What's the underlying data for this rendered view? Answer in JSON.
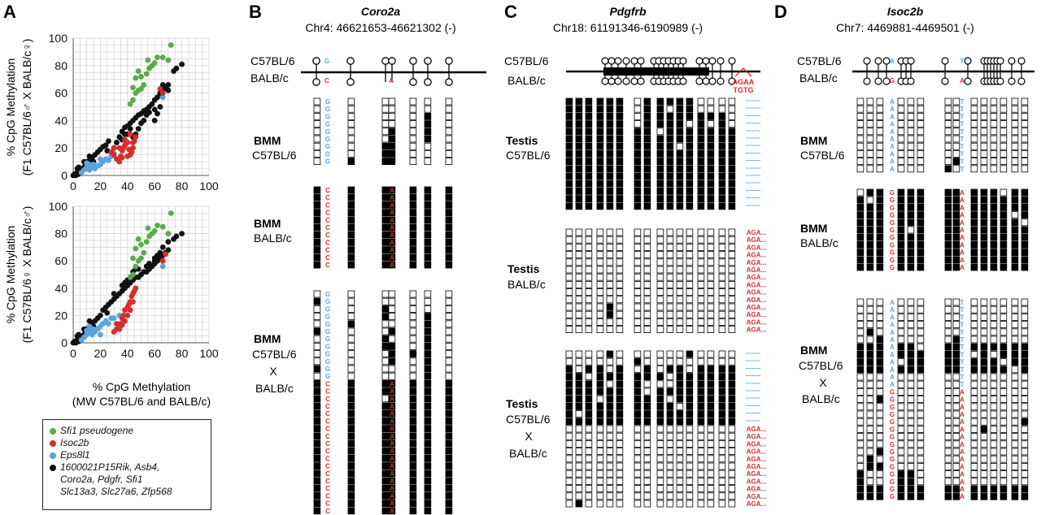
{
  "panels": {
    "A": {
      "label": "A",
      "y_label_top": [
        "% CpG Methylation",
        "(F1 C57BL/6♂ X BALB/c♀)"
      ],
      "y_label_bottom": [
        "% CpG Methylation",
        "(F1 C57BL/6♀ X BALB/c♂)"
      ],
      "x_label": [
        "% CpG Methylation",
        "(MW C57BL/6 and BALB/c)"
      ]
    },
    "B": {
      "label": "B",
      "gene": "Coro2a",
      "coords": "Chr4: 46621653-46621302 (-)"
    },
    "C": {
      "label": "C",
      "gene": "Pdgfrb",
      "coords": "Chr18: 61191346-6190989 (-)"
    },
    "D": {
      "label": "D",
      "gene": "Isoc2b",
      "coords": "Chr7: 4469881-4469501 (-)"
    }
  },
  "strains": {
    "b6": "C57BL/6",
    "balb": "BALB/c"
  },
  "cross": "X",
  "tissues": {
    "bmm": "BMM",
    "testis": "Testis"
  },
  "snp_labels": {
    "B": {
      "b6": [
        "G",
        "C"
      ],
      "balb": [
        "C",
        "A"
      ]
    },
    "C": {
      "indel_b6": "-------",
      "indel_balb": "AGA...",
      "insert_1": "AGAA",
      "insert_2": "TGTG"
    },
    "D": {
      "b6": [
        "A",
        "T"
      ],
      "balb": [
        "G",
        "A"
      ]
    }
  },
  "legend": [
    {
      "label": "Sfi1 pseudogene",
      "color": "#5aab4b"
    },
    {
      "label": "Isoc2b",
      "color": "#d62d2d"
    },
    {
      "label": "Eps8l1",
      "color": "#5ba3dc"
    },
    {
      "label": "1600021P15Rik, Asb4,\nCoro2a, Pdgfr, Sfi1\nSlc13a3, Slc27a6, Zfp568",
      "color": "#111111"
    }
  ],
  "colors": {
    "sfi1": "#5aab4b",
    "isoc2b": "#d62d2d",
    "eps8l1": "#5ba3dc",
    "other": "#111111",
    "b6_snp": "#5ba3dc",
    "balb_snp": "#d62d2d"
  },
  "chart_data": [
    {
      "type": "scatter",
      "title": "",
      "xlabel": "% CpG Methylation (MW C57BL/6 and BALB/c)",
      "ylabel": "% CpG Methylation (F1 C57BL/6♂ X BALB/c♀)",
      "xlim": [
        0,
        100
      ],
      "ylim": [
        0,
        100
      ],
      "xticks": [
        0,
        20,
        40,
        60,
        80,
        100
      ],
      "yticks": [
        0,
        20,
        40,
        60,
        80,
        100
      ],
      "grid": true,
      "series": [
        {
          "name": "Sfi1 pseudogene",
          "points": [
            [
              44,
              55
            ],
            [
              46,
              60
            ],
            [
              48,
              62
            ],
            [
              50,
              63
            ],
            [
              52,
              66
            ],
            [
              46,
              71
            ],
            [
              50,
              72
            ],
            [
              54,
              74
            ],
            [
              48,
              76
            ],
            [
              56,
              78
            ],
            [
              55,
              84
            ],
            [
              62,
              86
            ],
            [
              66,
              86
            ],
            [
              70,
              84
            ],
            [
              60,
              82
            ],
            [
              44,
              64
            ],
            [
              42,
              52
            ],
            [
              58,
              80
            ],
            [
              72,
              95
            ]
          ]
        },
        {
          "name": "Isoc2b",
          "points": [
            [
              28,
              17
            ],
            [
              30,
              15
            ],
            [
              32,
              12
            ],
            [
              34,
              10
            ],
            [
              35,
              14
            ],
            [
              36,
              18
            ],
            [
              37,
              20
            ],
            [
              38,
              22
            ],
            [
              40,
              24
            ],
            [
              41,
              19
            ],
            [
              42,
              15
            ],
            [
              43,
              17
            ],
            [
              44,
              20
            ],
            [
              45,
              25
            ],
            [
              46,
              28
            ],
            [
              34,
              20
            ],
            [
              38,
              26
            ],
            [
              40,
              14
            ],
            [
              36,
              13
            ],
            [
              44,
              24
            ],
            [
              30,
              20
            ],
            [
              66,
              60
            ],
            [
              64,
              63
            ],
            [
              42,
              30
            ]
          ]
        },
        {
          "name": "Eps8l1",
          "points": [
            [
              6,
              2
            ],
            [
              8,
              4
            ],
            [
              10,
              6
            ],
            [
              12,
              4
            ],
            [
              14,
              6
            ],
            [
              15,
              8
            ],
            [
              16,
              5
            ],
            [
              18,
              7
            ],
            [
              20,
              8
            ],
            [
              22,
              10
            ],
            [
              24,
              12
            ],
            [
              26,
              11
            ],
            [
              28,
              14
            ],
            [
              10,
              9
            ],
            [
              20,
              12
            ],
            [
              66,
              57
            ],
            [
              30,
              16
            ],
            [
              12,
              8
            ]
          ]
        },
        {
          "name": "1600021P15Rik, Asb4, Coro2a, Pdgfr, Sfi1 Slc13a3, Slc27a6, Zfp568",
          "points": [
            [
              0,
              0
            ],
            [
              1,
              1
            ],
            [
              2,
              0
            ],
            [
              3,
              2
            ],
            [
              4,
              1
            ],
            [
              5,
              3
            ],
            [
              6,
              4
            ],
            [
              7,
              5
            ],
            [
              8,
              6
            ],
            [
              9,
              8
            ],
            [
              10,
              10
            ],
            [
              12,
              11
            ],
            [
              14,
              13
            ],
            [
              16,
              15
            ],
            [
              18,
              17
            ],
            [
              20,
              19
            ],
            [
              22,
              21
            ],
            [
              24,
              22
            ],
            [
              26,
              25
            ],
            [
              4,
              6
            ],
            [
              8,
              10
            ],
            [
              12,
              14
            ],
            [
              28,
              14
            ],
            [
              30,
              20
            ],
            [
              32,
              24
            ],
            [
              34,
              28
            ],
            [
              36,
              32
            ],
            [
              38,
              35
            ],
            [
              40,
              36
            ],
            [
              42,
              38
            ],
            [
              44,
              40
            ],
            [
              46,
              42
            ],
            [
              48,
              44
            ],
            [
              50,
              45
            ],
            [
              52,
              47
            ],
            [
              54,
              48
            ],
            [
              56,
              50
            ],
            [
              58,
              52
            ],
            [
              60,
              55
            ],
            [
              62,
              57
            ],
            [
              64,
              60
            ],
            [
              66,
              62
            ],
            [
              68,
              64
            ],
            [
              70,
              66
            ],
            [
              46,
              30
            ],
            [
              44,
              28
            ],
            [
              48,
              34
            ],
            [
              50,
              38
            ],
            [
              52,
              40
            ],
            [
              42,
              34
            ],
            [
              40,
              30
            ],
            [
              38,
              30
            ],
            [
              56,
              46
            ],
            [
              60,
              48
            ],
            [
              54,
              44
            ],
            [
              76,
              78
            ],
            [
              80,
              81
            ],
            [
              74,
              76
            ],
            [
              3,
              5
            ],
            [
              6,
              2
            ],
            [
              15,
              10
            ],
            [
              25,
              18
            ],
            [
              60,
              40
            ],
            [
              62,
              45
            ],
            [
              64,
              50
            ],
            [
              36,
              26
            ],
            [
              70,
              62
            ],
            [
              66,
              66
            ]
          ]
        }
      ]
    },
    {
      "type": "scatter",
      "title": "",
      "xlabel": "% CpG Methylation (MW C57BL/6 and BALB/c)",
      "ylabel": "% CpG Methylation (F1 C57BL/6♀ X BALB/c♂)",
      "xlim": [
        0,
        100
      ],
      "ylim": [
        0,
        100
      ],
      "xticks": [
        0,
        20,
        40,
        60,
        80,
        100
      ],
      "yticks": [
        0,
        20,
        40,
        60,
        80,
        100
      ],
      "grid": true,
      "series": [
        {
          "name": "Sfi1 pseudogene",
          "points": [
            [
              44,
              50
            ],
            [
              46,
              56
            ],
            [
              48,
              60
            ],
            [
              50,
              62
            ],
            [
              52,
              66
            ],
            [
              46,
              69
            ],
            [
              50,
              72
            ],
            [
              54,
              74
            ],
            [
              48,
              76
            ],
            [
              56,
              78
            ],
            [
              55,
              84
            ],
            [
              62,
              86
            ],
            [
              66,
              85
            ],
            [
              70,
              80
            ],
            [
              60,
              82
            ],
            [
              44,
              62
            ],
            [
              42,
              48
            ],
            [
              58,
              80
            ],
            [
              72,
              95
            ]
          ]
        },
        {
          "name": "Isoc2b",
          "points": [
            [
              30,
              8
            ],
            [
              32,
              10
            ],
            [
              34,
              12
            ],
            [
              35,
              14
            ],
            [
              36,
              18
            ],
            [
              37,
              20
            ],
            [
              38,
              24
            ],
            [
              40,
              26
            ],
            [
              41,
              28
            ],
            [
              42,
              30
            ],
            [
              43,
              34
            ],
            [
              44,
              36
            ],
            [
              45,
              38
            ],
            [
              46,
              40
            ],
            [
              40,
              20
            ],
            [
              38,
              16
            ],
            [
              36,
              13
            ],
            [
              34,
              10
            ],
            [
              42,
              24
            ],
            [
              44,
              30
            ],
            [
              66,
              60
            ],
            [
              68,
              65
            ],
            [
              32,
              14
            ]
          ]
        },
        {
          "name": "Eps8l1",
          "points": [
            [
              6,
              2
            ],
            [
              8,
              4
            ],
            [
              10,
              6
            ],
            [
              12,
              8
            ],
            [
              14,
              6
            ],
            [
              15,
              10
            ],
            [
              16,
              8
            ],
            [
              18,
              10
            ],
            [
              20,
              12
            ],
            [
              22,
              14
            ],
            [
              24,
              16
            ],
            [
              26,
              14
            ],
            [
              28,
              18
            ],
            [
              10,
              9
            ],
            [
              20,
              6
            ],
            [
              66,
              56
            ],
            [
              30,
              18
            ],
            [
              12,
              12
            ],
            [
              34,
              20
            ]
          ]
        },
        {
          "name": "1600021P15Rik, Asb4, Coro2a, Pdgfr, Sfi1 Slc13a3, Slc27a6, Zfp568",
          "points": [
            [
              0,
              0
            ],
            [
              1,
              1
            ],
            [
              2,
              0
            ],
            [
              3,
              2
            ],
            [
              4,
              1
            ],
            [
              5,
              3
            ],
            [
              6,
              4
            ],
            [
              7,
              5
            ],
            [
              8,
              6
            ],
            [
              9,
              8
            ],
            [
              10,
              10
            ],
            [
              12,
              12
            ],
            [
              14,
              14
            ],
            [
              16,
              16
            ],
            [
              18,
              18
            ],
            [
              20,
              20
            ],
            [
              22,
              24
            ],
            [
              24,
              26
            ],
            [
              26,
              28
            ],
            [
              4,
              6
            ],
            [
              8,
              10
            ],
            [
              12,
              16
            ],
            [
              28,
              30
            ],
            [
              30,
              32
            ],
            [
              32,
              34
            ],
            [
              34,
              36
            ],
            [
              36,
              38
            ],
            [
              38,
              40
            ],
            [
              40,
              42
            ],
            [
              42,
              44
            ],
            [
              44,
              46
            ],
            [
              46,
              48
            ],
            [
              48,
              48
            ],
            [
              50,
              50
            ],
            [
              52,
              52
            ],
            [
              54,
              52
            ],
            [
              56,
              54
            ],
            [
              58,
              56
            ],
            [
              60,
              58
            ],
            [
              62,
              60
            ],
            [
              64,
              62
            ],
            [
              66,
              64
            ],
            [
              68,
              66
            ],
            [
              70,
              68
            ],
            [
              40,
              46
            ],
            [
              38,
              44
            ],
            [
              44,
              52
            ],
            [
              46,
              54
            ],
            [
              48,
              54
            ],
            [
              42,
              48
            ],
            [
              36,
              42
            ],
            [
              56,
              58
            ],
            [
              60,
              62
            ],
            [
              54,
              56
            ],
            [
              76,
              78
            ],
            [
              80,
              80
            ],
            [
              74,
              76
            ],
            [
              3,
              5
            ],
            [
              6,
              2
            ],
            [
              15,
              12
            ],
            [
              25,
              22
            ],
            [
              60,
              60
            ],
            [
              62,
              64
            ],
            [
              64,
              66
            ],
            [
              30,
              36
            ],
            [
              70,
              74
            ],
            [
              66,
              70
            ]
          ]
        }
      ]
    }
  ]
}
